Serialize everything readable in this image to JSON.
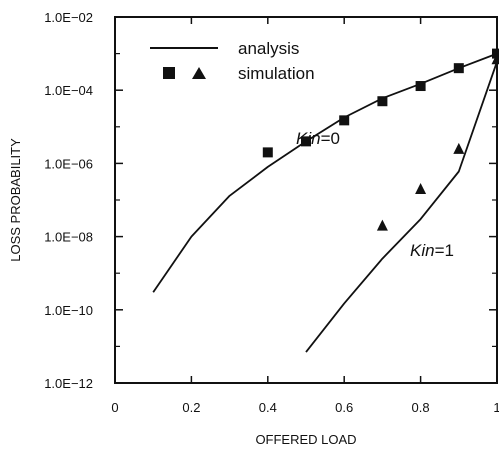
{
  "chart_data": {
    "type": "line",
    "xlabel": "OFFERED LOAD",
    "ylabel": "LOSS PROBABILITY",
    "xlim": [
      0,
      1
    ],
    "ylim": [
      1e-12,
      0.01
    ],
    "yscale": "log",
    "x_ticks": [
      0,
      0.2,
      0.4,
      0.6,
      0.8,
      1
    ],
    "x_tick_labels": [
      "0",
      "0.2",
      "0.4",
      "0.6",
      "0.8",
      "1"
    ],
    "y_ticks": [
      1e-12,
      1e-10,
      1e-08,
      1e-06,
      0.0001,
      0.01
    ],
    "y_tick_labels": [
      "1.0E−12",
      "1.0E−10",
      "1.0E−08",
      "1.0E−06",
      "1.0E−04",
      "1.0E−02"
    ],
    "grid": false,
    "legend": {
      "position": "top-left",
      "entries": [
        {
          "label": "analysis",
          "marker": "line"
        },
        {
          "label": "simulation",
          "marker": "square-triangle"
        }
      ]
    },
    "series": [
      {
        "name": "analysis",
        "annotation": {
          "prefix": "Kin",
          "suffix": "=0"
        },
        "kind": "line",
        "x": [
          0.1,
          0.2,
          0.3,
          0.4,
          0.5,
          0.6,
          0.7,
          0.8,
          0.9,
          1.0
        ],
        "y": [
          3e-10,
          1e-08,
          1.3e-07,
          8e-07,
          4e-06,
          1.8e-05,
          6e-05,
          0.00015,
          0.0004,
          0.001
        ]
      },
      {
        "name": "analysis",
        "annotation": {
          "prefix": "Kin",
          "suffix": "=1"
        },
        "kind": "line",
        "x": [
          0.5,
          0.6,
          0.7,
          0.8,
          0.9,
          1.0
        ],
        "y": [
          7e-12,
          1.5e-10,
          2.5e-09,
          3e-08,
          6e-07,
          0.0006
        ]
      },
      {
        "name": "simulation",
        "kind": "marker",
        "marker": "square",
        "x": [
          0.4,
          0.5,
          0.6,
          0.7,
          0.8,
          0.9,
          1.0
        ],
        "y": [
          2e-06,
          4e-06,
          1.5e-05,
          5e-05,
          0.00013,
          0.0004,
          0.001
        ]
      },
      {
        "name": "simulation",
        "kind": "marker",
        "marker": "triangle",
        "x": [
          0.7,
          0.8,
          0.9,
          1.0
        ],
        "y": [
          2e-08,
          2e-07,
          2.5e-06,
          0.0007
        ]
      }
    ]
  }
}
